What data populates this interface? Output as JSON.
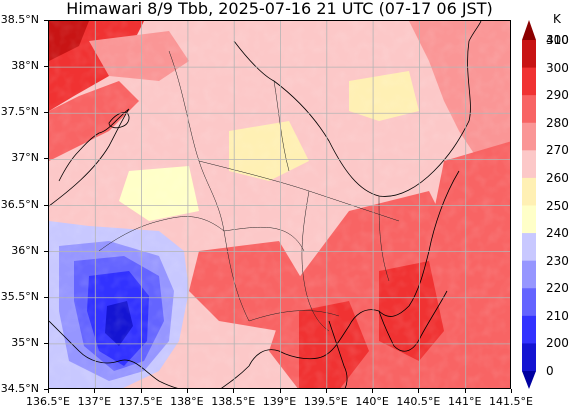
{
  "title": "Himawari 8/9 Tbb, 2025-07-16 21 UTC (07-17 06 JST)",
  "map": {
    "lon_range": [
      136.5,
      141.5
    ],
    "lat_range": [
      34.5,
      38.5
    ],
    "grid": true,
    "x_ticks": [
      "136.5°E",
      "137°E",
      "137.5°E",
      "138°E",
      "138.5°E",
      "139°E",
      "139.5°E",
      "140°E",
      "140.5°E",
      "141°E",
      "141.5°E"
    ],
    "y_ticks": [
      "38.5°N",
      "38°N",
      "37.5°N",
      "37°N",
      "36.5°N",
      "36°N",
      "35.5°N",
      "35°N",
      "34.5°N"
    ]
  },
  "colorbar": {
    "unit": "K",
    "labels": [
      "400",
      "310",
      "300",
      "290",
      "280",
      "270",
      "260",
      "250",
      "240",
      "230",
      "220",
      "210",
      "200",
      "0"
    ],
    "colors": [
      "#8b0000",
      "#c81414",
      "#f03232",
      "#f86464",
      "#fa9696",
      "#fcc8c8",
      "#fff0b4",
      "#ffffc8",
      "#c8c8ff",
      "#9696ff",
      "#6464ff",
      "#3232ff",
      "#1414d2",
      "#0000a0"
    ]
  }
}
